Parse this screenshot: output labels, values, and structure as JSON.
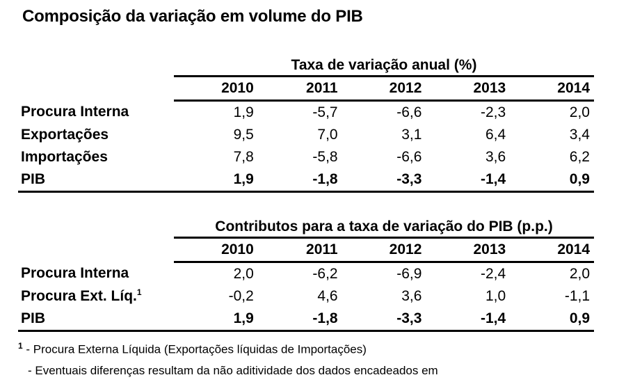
{
  "title": "Composição da variação em volume do PIB",
  "table1": {
    "caption": "Taxa de variação anual (%)",
    "years": [
      "2010",
      "2011",
      "2012",
      "2013",
      "2014"
    ],
    "rows": [
      {
        "label": "Procura Interna",
        "values": [
          "1,9",
          "-5,7",
          "-6,6",
          "-2,3",
          "2,0"
        ]
      },
      {
        "label": "Exportações",
        "values": [
          "9,5",
          "7,0",
          "3,1",
          "6,4",
          "3,4"
        ]
      },
      {
        "label": "Importações",
        "values": [
          "7,8",
          "-5,8",
          "-6,6",
          "3,6",
          "6,2"
        ]
      },
      {
        "label": "PIB",
        "values": [
          "1,9",
          "-1,8",
          "-3,3",
          "-1,4",
          "0,9"
        ]
      }
    ]
  },
  "table2": {
    "caption": "Contributos para a taxa de variação do PIB (p.p.)",
    "years": [
      "2010",
      "2011",
      "2012",
      "2013",
      "2014"
    ],
    "rows": [
      {
        "label": "Procura Interna",
        "values": [
          "2,0",
          "-6,2",
          "-6,9",
          "-2,4",
          "2,0"
        ]
      },
      {
        "label": "Procura Ext. Líq.",
        "footnote_mark": "1",
        "values": [
          "-0,2",
          "4,6",
          "3,6",
          "1,0",
          "-1,1"
        ]
      },
      {
        "label": "PIB",
        "values": [
          "1,9",
          "-1,8",
          "-3,3",
          "-1,4",
          "0,9"
        ]
      }
    ]
  },
  "notes": {
    "note1_mark": "1",
    "note1_text": " - Procura Externa Líquida (Exportações líquidas de Importações)",
    "note2_text": "- Eventuais diferenças resultam da não aditividade dos dados encadeados em"
  }
}
